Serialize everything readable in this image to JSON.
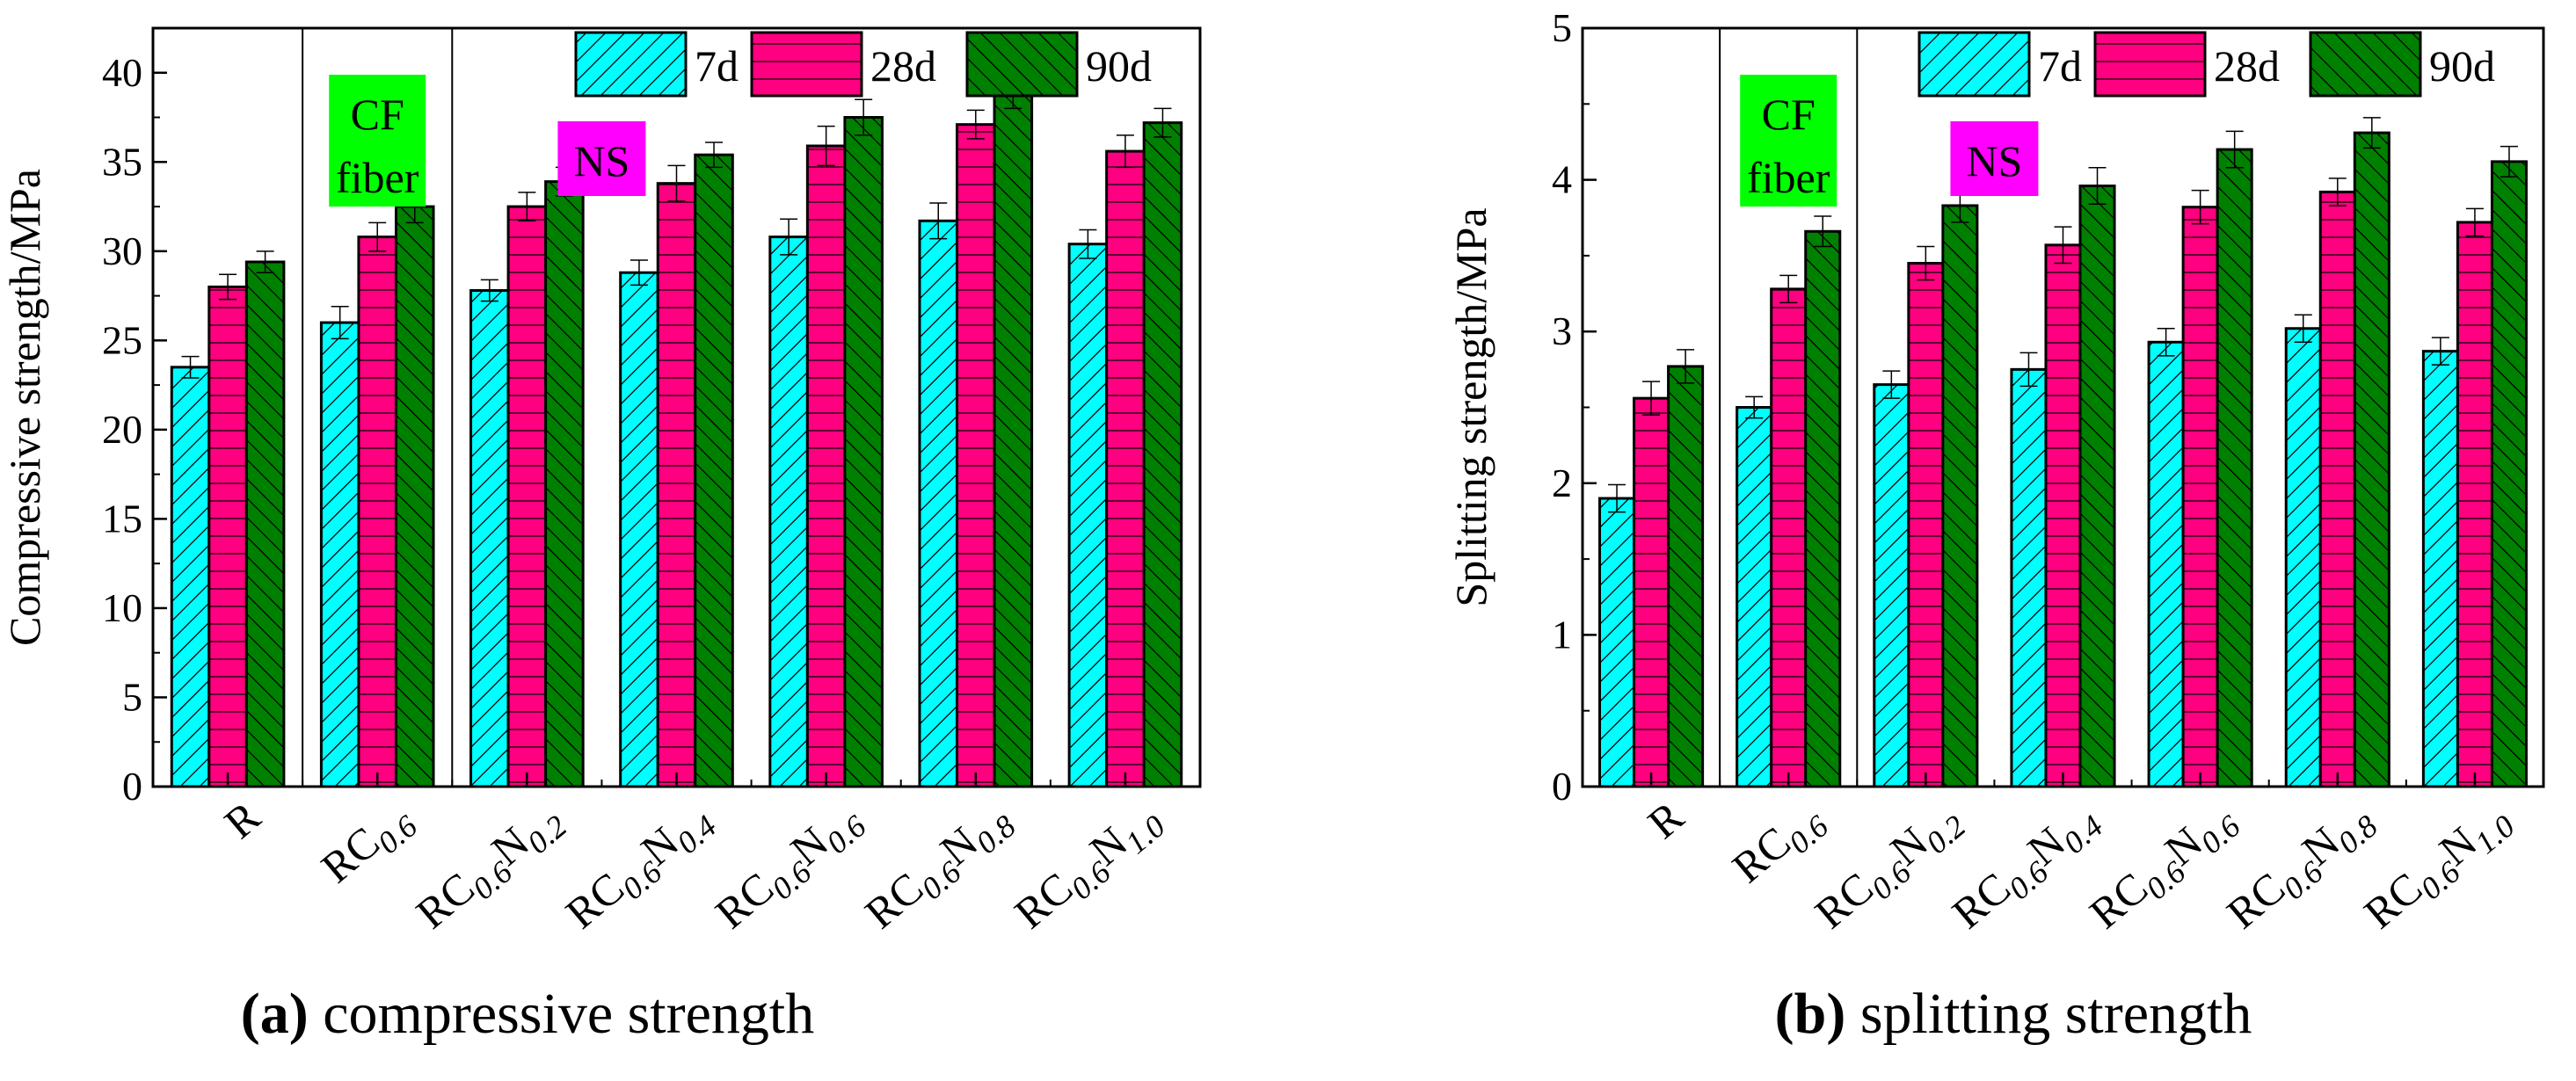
{
  "chart_data": [
    {
      "type": "bar",
      "caption_letter": "(a)",
      "caption_text": "compressive strength",
      "ylabel": "Compressive strength/MPa",
      "xlabel": "",
      "ylim": [
        0,
        42.5
      ],
      "yticks": [
        0,
        5,
        10,
        15,
        20,
        25,
        30,
        35,
        40
      ],
      "minor_step": 2.5,
      "categories": [
        "R",
        "RC0.6",
        "RC0.6N0.2",
        "RC0.6N0.4",
        "RC0.6N0.6",
        "RC0.6N0.8",
        "RC0.6N1.0"
      ],
      "series": [
        {
          "name": "7d",
          "color": "#00FFFF",
          "hatch": "diag-up",
          "values": [
            23.5,
            26.0,
            27.8,
            28.8,
            30.8,
            31.7,
            30.4
          ],
          "errors": [
            0.6,
            0.9,
            0.6,
            0.7,
            1.0,
            1.0,
            0.8
          ]
        },
        {
          "name": "28d",
          "color": "#FF0080",
          "hatch": "horizontal",
          "values": [
            28.0,
            30.8,
            32.5,
            33.8,
            35.9,
            37.1,
            35.6
          ],
          "errors": [
            0.7,
            0.8,
            0.8,
            1.0,
            1.1,
            0.8,
            0.9
          ]
        },
        {
          "name": "90d",
          "color": "#008000",
          "hatch": "diag-down",
          "values": [
            29.4,
            32.5,
            33.9,
            35.4,
            37.5,
            38.9,
            37.2
          ],
          "errors": [
            0.6,
            0.9,
            0.8,
            0.7,
            1.0,
            0.9,
            0.8
          ]
        }
      ],
      "annotations": [
        {
          "text_lines": [
            "CF",
            "fiber"
          ],
          "bg": "#00FF00",
          "group": 1
        },
        {
          "text_lines": [
            "NS"
          ],
          "bg": "#FF00FF",
          "group": 2.5
        }
      ],
      "separators_after_groups": [
        0,
        1
      ],
      "legend": "top-right",
      "grid": false
    },
    {
      "type": "bar",
      "caption_letter": "(b)",
      "caption_text": "splitting strength",
      "ylabel": "Splitting strength/MPa",
      "xlabel": "",
      "ylim": [
        0,
        5
      ],
      "yticks": [
        0,
        1,
        2,
        3,
        4,
        5
      ],
      "minor_step": 0.5,
      "categories": [
        "R",
        "RC0.6",
        "RC0.6N0.2",
        "RC0.6N0.4",
        "RC0.6N0.6",
        "RC0.6N0.8",
        "RC0.6N1.0"
      ],
      "series": [
        {
          "name": "7d",
          "color": "#00FFFF",
          "hatch": "diag-up",
          "values": [
            1.9,
            2.5,
            2.65,
            2.75,
            2.93,
            3.02,
            2.87
          ],
          "errors": [
            0.09,
            0.07,
            0.09,
            0.11,
            0.09,
            0.09,
            0.09
          ]
        },
        {
          "name": "28d",
          "color": "#FF0080",
          "hatch": "horizontal",
          "values": [
            2.56,
            3.28,
            3.45,
            3.57,
            3.82,
            3.92,
            3.72
          ],
          "errors": [
            0.11,
            0.09,
            0.11,
            0.12,
            0.11,
            0.09,
            0.09
          ]
        },
        {
          "name": "90d",
          "color": "#008000",
          "hatch": "diag-down",
          "values": [
            2.77,
            3.66,
            3.83,
            3.96,
            4.2,
            4.31,
            4.12
          ],
          "errors": [
            0.11,
            0.1,
            0.11,
            0.12,
            0.12,
            0.1,
            0.1
          ]
        }
      ],
      "annotations": [
        {
          "text_lines": [
            "CF",
            "fiber"
          ],
          "bg": "#00FF00",
          "group": 1
        },
        {
          "text_lines": [
            "NS"
          ],
          "bg": "#FF00FF",
          "group": 2.5
        }
      ],
      "separators_after_groups": [
        0,
        1
      ],
      "legend": "top-right",
      "grid": false
    }
  ]
}
